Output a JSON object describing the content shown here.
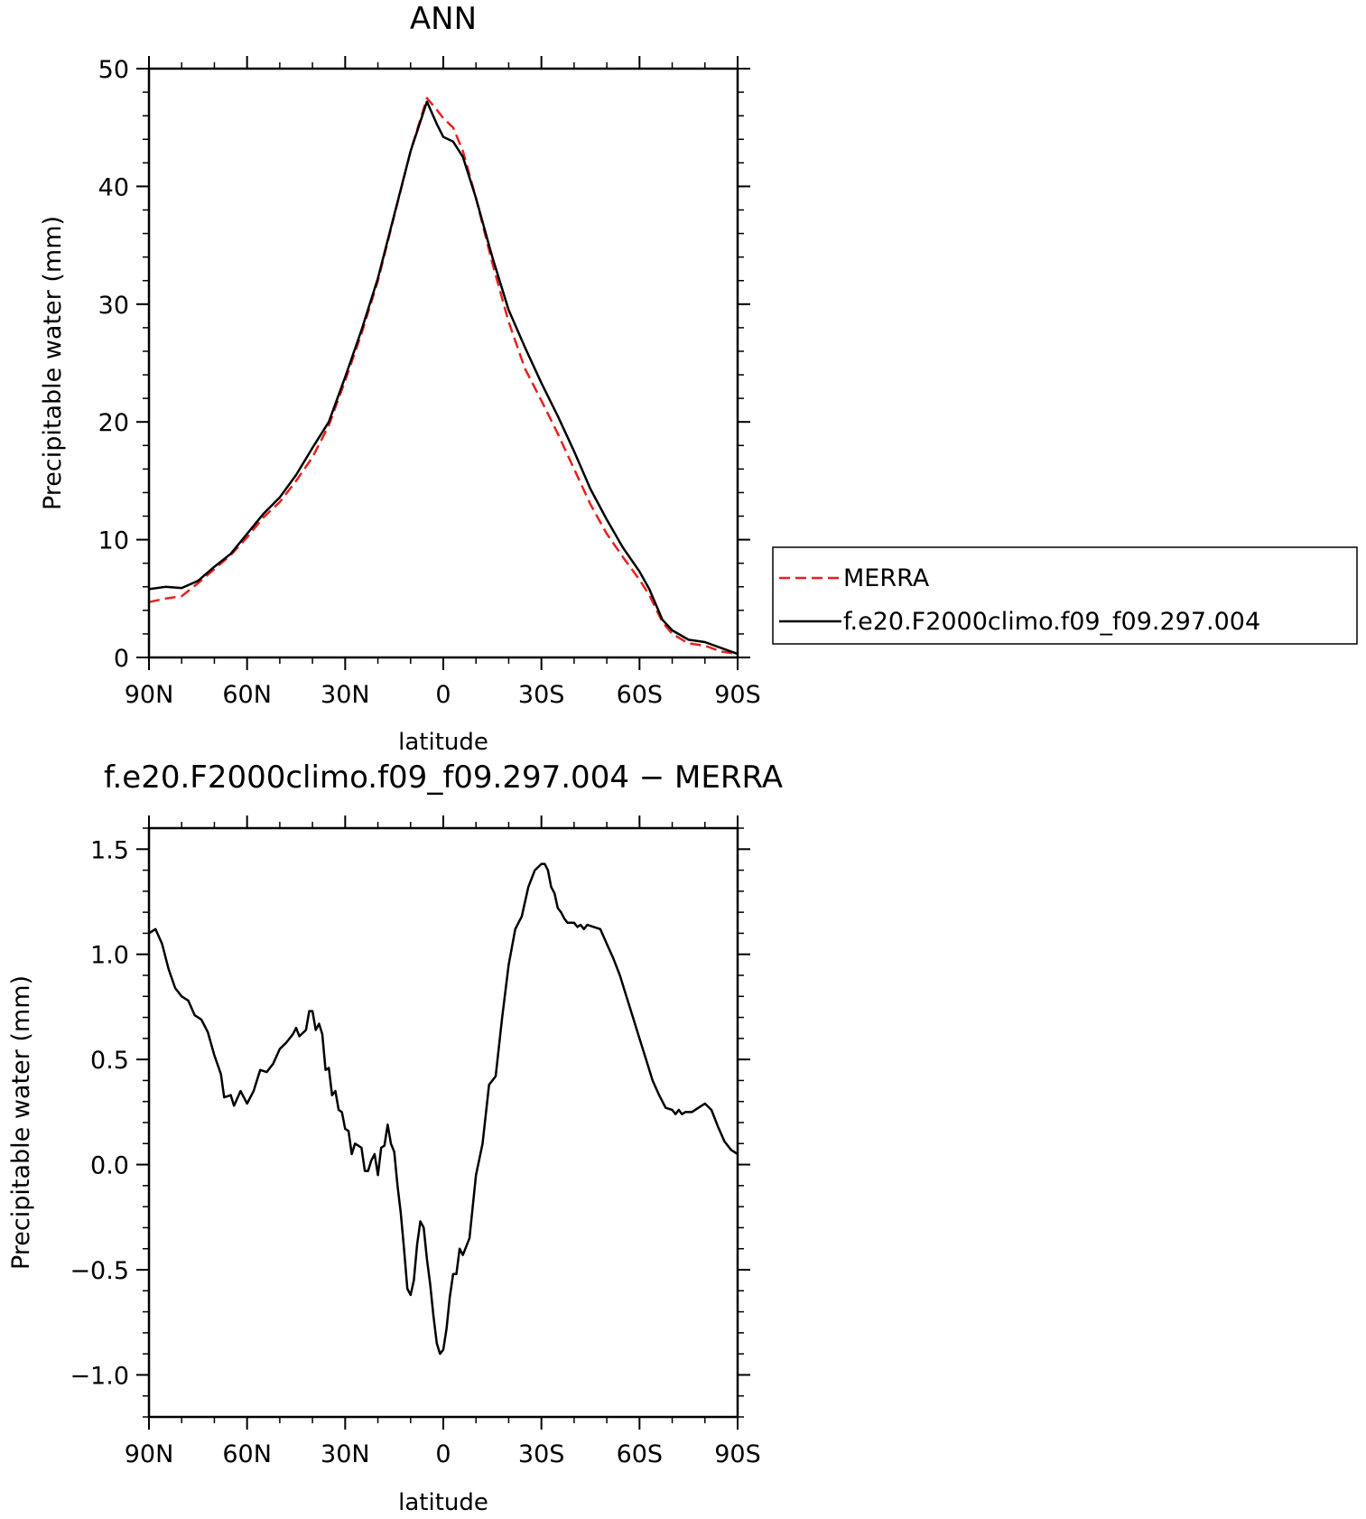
{
  "chart_data": [
    {
      "type": "line",
      "title": "ANN",
      "xlabel": "latitude",
      "ylabel": "Precipitable water (mm)",
      "xlim": [
        90,
        -90
      ],
      "ylim": [
        0,
        50
      ],
      "x_tick_values": [
        90,
        60,
        30,
        0,
        -30,
        -60,
        -90
      ],
      "x_tick_labels": [
        "90N",
        "60N",
        "30N",
        "0",
        "30S",
        "60S",
        "90S"
      ],
      "y_tick_values": [
        0,
        10,
        20,
        30,
        40,
        50
      ],
      "y_tick_labels": [
        "0",
        "10",
        "20",
        "30",
        "40",
        "50"
      ],
      "legend_position": "right",
      "series": [
        {
          "name": "MERRA",
          "color": "#e8201c",
          "dash": "dashed",
          "points": [
            [
              90,
              4.7
            ],
            [
              85,
              5.0
            ],
            [
              80,
              5.2
            ],
            [
              75,
              6.3
            ],
            [
              70,
              7.5
            ],
            [
              65,
              8.7
            ],
            [
              60,
              10.2
            ],
            [
              55,
              11.9
            ],
            [
              50,
              13.2
            ],
            [
              45,
              15.0
            ],
            [
              40,
              17.0
            ],
            [
              35,
              19.7
            ],
            [
              30,
              23.5
            ],
            [
              25,
              27.5
            ],
            [
              20,
              32.0
            ],
            [
              15,
              37.5
            ],
            [
              10,
              43.0
            ],
            [
              5,
              47.5
            ],
            [
              2,
              46.5
            ],
            [
              0,
              45.8
            ],
            [
              -3,
              45.0
            ],
            [
              -6,
              43.0
            ],
            [
              -10,
              39.0
            ],
            [
              -15,
              33.5
            ],
            [
              -20,
              28.5
            ],
            [
              -25,
              24.5
            ],
            [
              -30,
              21.8
            ],
            [
              -35,
              19.0
            ],
            [
              -40,
              16.0
            ],
            [
              -45,
              13.0
            ],
            [
              -50,
              10.5
            ],
            [
              -55,
              8.5
            ],
            [
              -60,
              6.6
            ],
            [
              -63,
              5.3
            ],
            [
              -67,
              3.0
            ],
            [
              -70,
              2.0
            ],
            [
              -75,
              1.2
            ],
            [
              -80,
              1.0
            ],
            [
              -85,
              0.5
            ],
            [
              -90,
              0.3
            ]
          ]
        },
        {
          "name": "f.e20.F2000climo.f09_f09.297.004",
          "color": "#000000",
          "dash": "solid",
          "points": [
            [
              90,
              5.8
            ],
            [
              85,
              6.0
            ],
            [
              80,
              5.9
            ],
            [
              75,
              6.5
            ],
            [
              70,
              7.7
            ],
            [
              65,
              8.8
            ],
            [
              60,
              10.5
            ],
            [
              55,
              12.2
            ],
            [
              50,
              13.6
            ],
            [
              45,
              15.5
            ],
            [
              40,
              17.8
            ],
            [
              35,
              20.0
            ],
            [
              30,
              23.8
            ],
            [
              25,
              27.8
            ],
            [
              20,
              32.2
            ],
            [
              15,
              37.6
            ],
            [
              10,
              43.0
            ],
            [
              5,
              47.2
            ],
            [
              2,
              45.3
            ],
            [
              0,
              44.2
            ],
            [
              -3,
              43.8
            ],
            [
              -6,
              42.5
            ],
            [
              -10,
              39.0
            ],
            [
              -15,
              34.0
            ],
            [
              -20,
              29.5
            ],
            [
              -25,
              26.3
            ],
            [
              -30,
              23.3
            ],
            [
              -35,
              20.5
            ],
            [
              -40,
              17.5
            ],
            [
              -45,
              14.3
            ],
            [
              -50,
              11.7
            ],
            [
              -55,
              9.3
            ],
            [
              -60,
              7.3
            ],
            [
              -63,
              5.8
            ],
            [
              -67,
              3.2
            ],
            [
              -70,
              2.3
            ],
            [
              -75,
              1.5
            ],
            [
              -80,
              1.3
            ],
            [
              -85,
              0.8
            ],
            [
              -90,
              0.3
            ]
          ]
        }
      ]
    },
    {
      "type": "line",
      "title": "f.e20.F2000climo.f09_f09.297.004 − MERRA",
      "xlabel": "latitude",
      "ylabel": "Precipitable water (mm)",
      "xlim": [
        90,
        -90
      ],
      "ylim": [
        -1.2,
        1.6
      ],
      "x_tick_values": [
        90,
        60,
        30,
        0,
        -30,
        -60,
        -90
      ],
      "x_tick_labels": [
        "90N",
        "60N",
        "30N",
        "0",
        "30S",
        "60S",
        "90S"
      ],
      "y_tick_values": [
        -1.0,
        -0.5,
        0.0,
        0.5,
        1.0,
        1.5
      ],
      "y_tick_labels": [
        "−1.0",
        "−0.5",
        "0.0",
        "0.5",
        "1.0",
        "1.5"
      ],
      "series": [
        {
          "color": "#000000",
          "dash": "solid",
          "points": [
            [
              90,
              1.1
            ],
            [
              88,
              1.12
            ],
            [
              86,
              1.05
            ],
            [
              84,
              0.93
            ],
            [
              82,
              0.84
            ],
            [
              80,
              0.8
            ],
            [
              78,
              0.78
            ],
            [
              76,
              0.71
            ],
            [
              74,
              0.69
            ],
            [
              72,
              0.63
            ],
            [
              70,
              0.52
            ],
            [
              68,
              0.43
            ],
            [
              67,
              0.32
            ],
            [
              65,
              0.33
            ],
            [
              64,
              0.28
            ],
            [
              62,
              0.35
            ],
            [
              60,
              0.29
            ],
            [
              58,
              0.35
            ],
            [
              56,
              0.45
            ],
            [
              54,
              0.44
            ],
            [
              52,
              0.48
            ],
            [
              50,
              0.55
            ],
            [
              48,
              0.58
            ],
            [
              46,
              0.62
            ],
            [
              45,
              0.65
            ],
            [
              44,
              0.61
            ],
            [
              42,
              0.64
            ],
            [
              41,
              0.73
            ],
            [
              40,
              0.73
            ],
            [
              39,
              0.64
            ],
            [
              38,
              0.67
            ],
            [
              37,
              0.62
            ],
            [
              36,
              0.45
            ],
            [
              35,
              0.46
            ],
            [
              34,
              0.33
            ],
            [
              33,
              0.35
            ],
            [
              32,
              0.26
            ],
            [
              31,
              0.25
            ],
            [
              30,
              0.17
            ],
            [
              29,
              0.16
            ],
            [
              28,
              0.05
            ],
            [
              27,
              0.1
            ],
            [
              26,
              0.09
            ],
            [
              25,
              0.08
            ],
            [
              24,
              -0.03
            ],
            [
              23,
              -0.03
            ],
            [
              22,
              0.02
            ],
            [
              21,
              0.05
            ],
            [
              20,
              -0.05
            ],
            [
              19,
              0.08
            ],
            [
              18,
              0.09
            ],
            [
              17,
              0.19
            ],
            [
              16,
              0.1
            ],
            [
              15,
              0.06
            ],
            [
              14,
              -0.1
            ],
            [
              13,
              -0.23
            ],
            [
              12,
              -0.4
            ],
            [
              11,
              -0.59
            ],
            [
              10,
              -0.62
            ],
            [
              9,
              -0.55
            ],
            [
              8,
              -0.38
            ],
            [
              7,
              -0.27
            ],
            [
              6,
              -0.3
            ],
            [
              5,
              -0.45
            ],
            [
              4,
              -0.57
            ],
            [
              3,
              -0.72
            ],
            [
              2,
              -0.85
            ],
            [
              1,
              -0.9
            ],
            [
              0,
              -0.88
            ],
            [
              -1,
              -0.78
            ],
            [
              -2,
              -0.63
            ],
            [
              -3,
              -0.52
            ],
            [
              -4,
              -0.52
            ],
            [
              -5,
              -0.4
            ],
            [
              -6,
              -0.43
            ],
            [
              -8,
              -0.35
            ],
            [
              -9,
              -0.2
            ],
            [
              -10,
              -0.05
            ],
            [
              -12,
              0.1
            ],
            [
              -14,
              0.38
            ],
            [
              -16,
              0.42
            ],
            [
              -18,
              0.7
            ],
            [
              -20,
              0.95
            ],
            [
              -22,
              1.12
            ],
            [
              -24,
              1.18
            ],
            [
              -26,
              1.32
            ],
            [
              -28,
              1.4
            ],
            [
              -30,
              1.43
            ],
            [
              -31,
              1.43
            ],
            [
              -32,
              1.4
            ],
            [
              -33,
              1.32
            ],
            [
              -34,
              1.29
            ],
            [
              -35,
              1.22
            ],
            [
              -36,
              1.2
            ],
            [
              -37,
              1.17
            ],
            [
              -38,
              1.15
            ],
            [
              -40,
              1.15
            ],
            [
              -41,
              1.13
            ],
            [
              -42,
              1.14
            ],
            [
              -43,
              1.12
            ],
            [
              -44,
              1.14
            ],
            [
              -46,
              1.13
            ],
            [
              -48,
              1.12
            ],
            [
              -50,
              1.05
            ],
            [
              -52,
              0.98
            ],
            [
              -54,
              0.9
            ],
            [
              -56,
              0.8
            ],
            [
              -58,
              0.7
            ],
            [
              -60,
              0.6
            ],
            [
              -62,
              0.5
            ],
            [
              -64,
              0.4
            ],
            [
              -66,
              0.33
            ],
            [
              -67,
              0.3
            ],
            [
              -68,
              0.27
            ],
            [
              -70,
              0.26
            ],
            [
              -71,
              0.24
            ],
            [
              -72,
              0.26
            ],
            [
              -73,
              0.24
            ],
            [
              -74,
              0.25
            ],
            [
              -76,
              0.25
            ],
            [
              -78,
              0.27
            ],
            [
              -80,
              0.29
            ],
            [
              -82,
              0.26
            ],
            [
              -84,
              0.18
            ],
            [
              -86,
              0.11
            ],
            [
              -88,
              0.07
            ],
            [
              -90,
              0.05
            ]
          ]
        }
      ]
    }
  ]
}
